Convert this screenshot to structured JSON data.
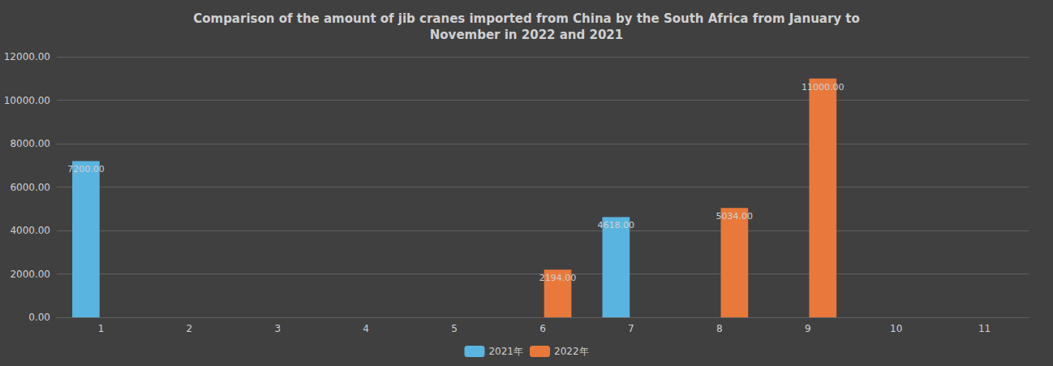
{
  "chart_data": {
    "type": "bar",
    "title": "Comparison of the amount of jib cranes imported from China by the South Africa from January to\nNovember in 2022 and 2021",
    "categories": [
      "1",
      "2",
      "3",
      "4",
      "5",
      "6",
      "7",
      "8",
      "9",
      "10",
      "11"
    ],
    "series": [
      {
        "name": "2021年",
        "color": "#5ab4e0",
        "values": [
          7200,
          0,
          0,
          0,
          0,
          0,
          4618,
          0,
          0,
          0,
          0
        ],
        "value_labels": [
          "7200.00",
          null,
          null,
          null,
          null,
          null,
          "4618.00",
          null,
          null,
          null,
          null
        ]
      },
      {
        "name": "2022年",
        "color": "#e8793a",
        "values": [
          0,
          0,
          0,
          0,
          0,
          2194,
          0,
          5034,
          11000,
          0,
          0
        ],
        "value_labels": [
          null,
          null,
          null,
          null,
          null,
          "2194.00",
          null,
          "5034.00",
          "11000.00",
          null,
          null
        ]
      }
    ],
    "ylim": [
      0,
      12000
    ],
    "yticks": [
      {
        "value": 0,
        "label": "0.00"
      },
      {
        "value": 2000,
        "label": "2000.00"
      },
      {
        "value": 4000,
        "label": "4000.00"
      },
      {
        "value": 6000,
        "label": "6000.00"
      },
      {
        "value": 8000,
        "label": "8000.00"
      },
      {
        "value": 10000,
        "label": "10000.00"
      },
      {
        "value": 12000,
        "label": "12000.00"
      }
    ],
    "grid": true,
    "legend": "bottom",
    "data_labels": true
  }
}
